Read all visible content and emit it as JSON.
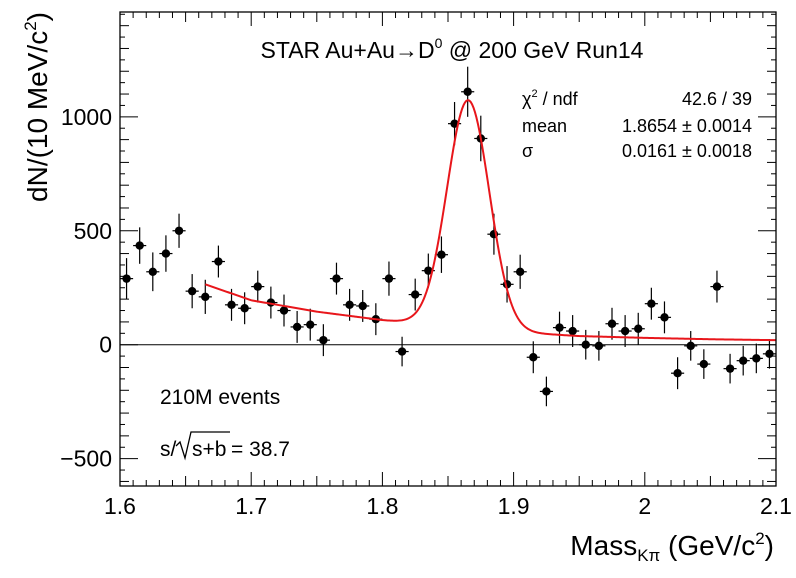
{
  "chart_data": {
    "type": "scatter",
    "title": "STAR Au+Au→D",
    "title_superscript": "0",
    "title_suffix": " @ 200 GeV Run14",
    "xlabel": "Mass",
    "xlabel_subscript": "Kπ",
    "xlabel_units": " (GeV/c",
    "xlabel_units_sup": "2",
    "xlabel_units_end": ")",
    "ylabel": "dN/(10 MeV/c",
    "ylabel_sup": "2",
    "ylabel_end": ")",
    "xlim": [
      1.6,
      2.1
    ],
    "ylim": [
      -620,
      1460
    ],
    "x_ticks": [
      1.6,
      1.7,
      1.8,
      1.9,
      2.0,
      2.1
    ],
    "x_tick_labels": [
      "1.6",
      "1.7",
      "1.8",
      "1.9",
      "2",
      "2.1"
    ],
    "y_ticks": [
      -500,
      0,
      500,
      1000
    ],
    "y_tick_labels": [
      "−500",
      "0",
      "500",
      "1000"
    ],
    "grid": false,
    "zero_line": true,
    "fit_color": "#e8161b",
    "marker_color": "#000000",
    "stats": {
      "rows": [
        {
          "label": "χ",
          "label_sup": "2",
          "label_rest": " / ndf",
          "value": "42.6 / 39"
        },
        {
          "label": "mean",
          "value": "1.8654 ± 0.0014"
        },
        {
          "label": "σ",
          "value": "0.0161 ± 0.0018"
        }
      ]
    },
    "annotations": {
      "events": "210M events",
      "significance_prefix": "s/",
      "significance_radicand": "s+b",
      "significance_suffix": " = 38.7"
    },
    "fit": {
      "x_start": 1.665,
      "x_end": 2.1,
      "mean": 1.8654,
      "sigma": 0.0161,
      "bg_points": [
        [
          1.665,
          265
        ],
        [
          1.7,
          195
        ],
        [
          1.75,
          145
        ],
        [
          1.8,
          108
        ],
        [
          1.83,
          92
        ],
        [
          1.9,
          55
        ],
        [
          1.95,
          38
        ],
        [
          2.0,
          30
        ],
        [
          2.05,
          24
        ],
        [
          2.1,
          20
        ]
      ],
      "amplitude": 1000
    },
    "points": [
      {
        "x": 1.605,
        "y": 290,
        "err": 90
      },
      {
        "x": 1.615,
        "y": 435,
        "err": 80
      },
      {
        "x": 1.625,
        "y": 320,
        "err": 85
      },
      {
        "x": 1.635,
        "y": 400,
        "err": 80
      },
      {
        "x": 1.645,
        "y": 500,
        "err": 75
      },
      {
        "x": 1.655,
        "y": 235,
        "err": 75
      },
      {
        "x": 1.665,
        "y": 210,
        "err": 75
      },
      {
        "x": 1.675,
        "y": 365,
        "err": 70
      },
      {
        "x": 1.685,
        "y": 175,
        "err": 70
      },
      {
        "x": 1.695,
        "y": 160,
        "err": 70
      },
      {
        "x": 1.705,
        "y": 255,
        "err": 70
      },
      {
        "x": 1.715,
        "y": 185,
        "err": 70
      },
      {
        "x": 1.725,
        "y": 150,
        "err": 70
      },
      {
        "x": 1.735,
        "y": 78,
        "err": 70
      },
      {
        "x": 1.745,
        "y": 88,
        "err": 70
      },
      {
        "x": 1.755,
        "y": 20,
        "err": 70
      },
      {
        "x": 1.765,
        "y": 290,
        "err": 70
      },
      {
        "x": 1.775,
        "y": 175,
        "err": 70
      },
      {
        "x": 1.785,
        "y": 170,
        "err": 70
      },
      {
        "x": 1.795,
        "y": 112,
        "err": 70
      },
      {
        "x": 1.805,
        "y": 290,
        "err": 75
      },
      {
        "x": 1.815,
        "y": -30,
        "err": 65
      },
      {
        "x": 1.825,
        "y": 220,
        "err": 70
      },
      {
        "x": 1.835,
        "y": 325,
        "err": 75
      },
      {
        "x": 1.845,
        "y": 395,
        "err": 80
      },
      {
        "x": 1.855,
        "y": 970,
        "err": 95
      },
      {
        "x": 1.865,
        "y": 1110,
        "err": 110
      },
      {
        "x": 1.875,
        "y": 905,
        "err": 100
      },
      {
        "x": 1.885,
        "y": 485,
        "err": 90
      },
      {
        "x": 1.895,
        "y": 265,
        "err": 80
      },
      {
        "x": 1.905,
        "y": 320,
        "err": 75
      },
      {
        "x": 1.915,
        "y": -55,
        "err": 70
      },
      {
        "x": 1.925,
        "y": -205,
        "err": 65
      },
      {
        "x": 1.935,
        "y": 75,
        "err": 70
      },
      {
        "x": 1.945,
        "y": 60,
        "err": 70
      },
      {
        "x": 1.955,
        "y": 0,
        "err": 65
      },
      {
        "x": 1.965,
        "y": -5,
        "err": 65
      },
      {
        "x": 1.975,
        "y": 92,
        "err": 70
      },
      {
        "x": 1.985,
        "y": 60,
        "err": 70
      },
      {
        "x": 1.995,
        "y": 70,
        "err": 70
      },
      {
        "x": 2.005,
        "y": 180,
        "err": 70
      },
      {
        "x": 2.015,
        "y": 120,
        "err": 70
      },
      {
        "x": 2.025,
        "y": -125,
        "err": 70
      },
      {
        "x": 2.035,
        "y": -5,
        "err": 65
      },
      {
        "x": 2.045,
        "y": -85,
        "err": 65
      },
      {
        "x": 2.055,
        "y": 255,
        "err": 70
      },
      {
        "x": 2.065,
        "y": -105,
        "err": 65
      },
      {
        "x": 2.075,
        "y": -70,
        "err": 65
      },
      {
        "x": 2.085,
        "y": -60,
        "err": 65
      },
      {
        "x": 2.095,
        "y": -40,
        "err": 65
      }
    ]
  }
}
